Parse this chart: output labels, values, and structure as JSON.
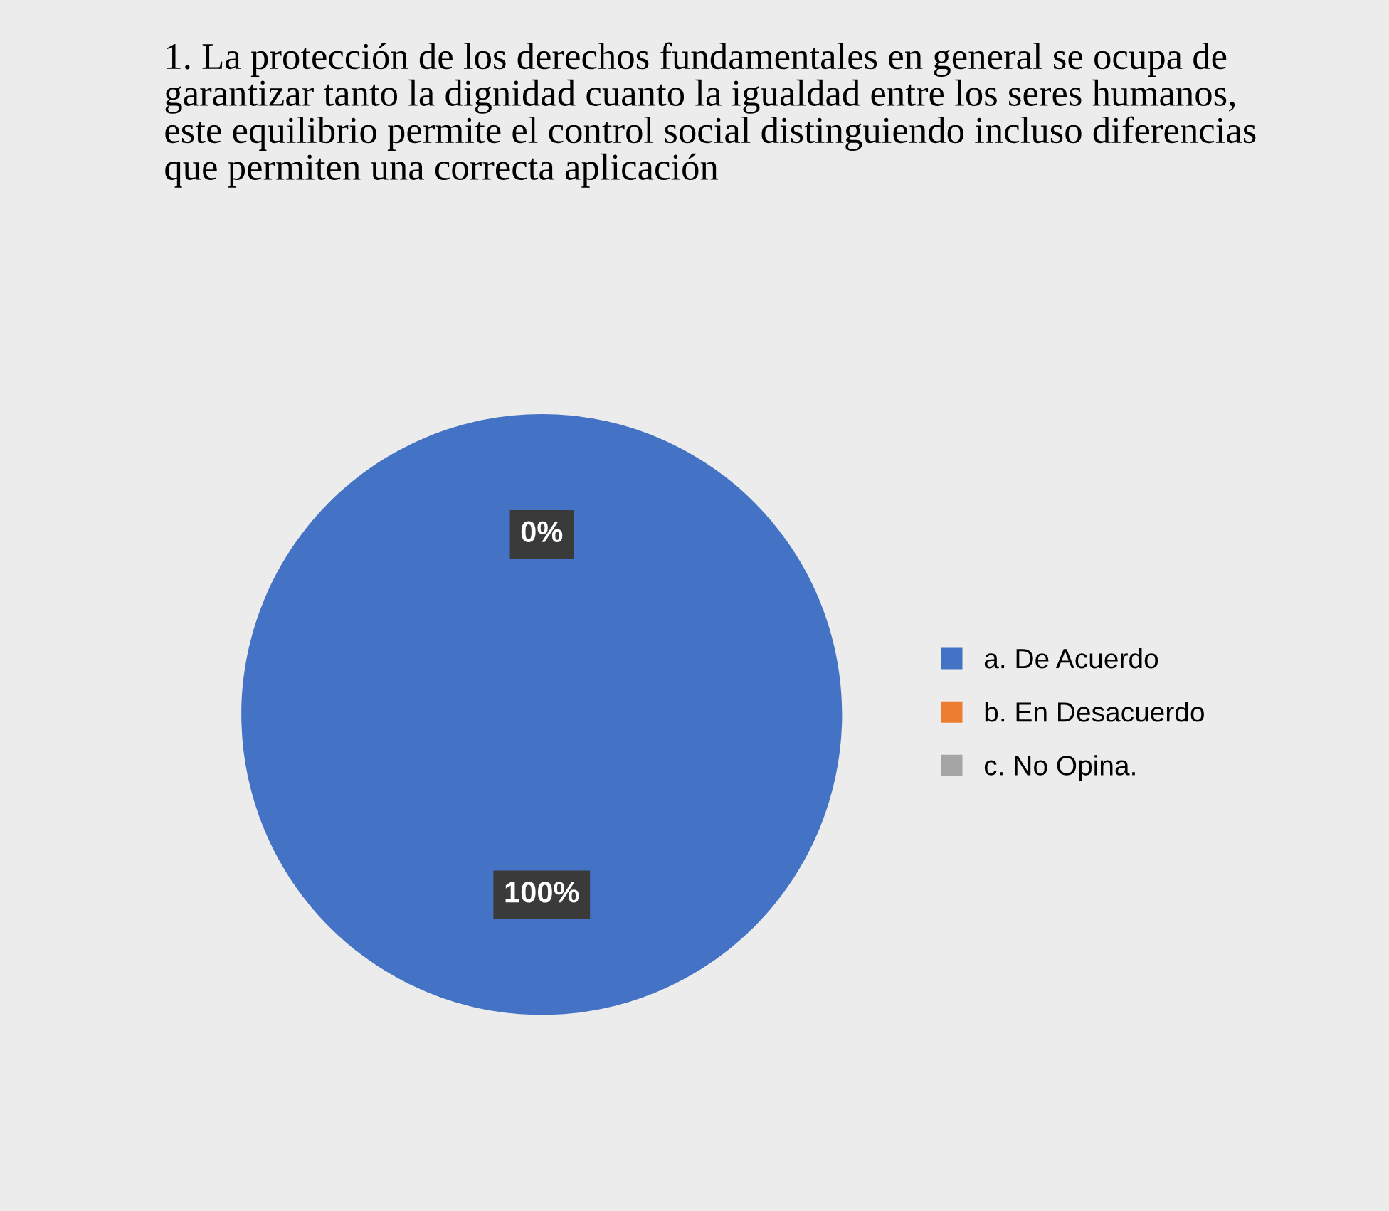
{
  "chart_data": {
    "type": "pie",
    "title": "1. La protección de los derechos fundamentales en general se ocupa de garantizar tanto la dignidad cuanto la igualdad entre los seres humanos, este equilibrio permite el control social distinguiendo incluso diferencias que permiten una correcta aplicación",
    "categories": [
      "a. De Acuerdo",
      "b. En Desacuerdo",
      "c. No Opina."
    ],
    "values": [
      100,
      0,
      0
    ],
    "colors": [
      "#4472c4",
      "#ed7d31",
      "#a5a5a5"
    ],
    "value_labels": [
      "100%",
      "0%",
      null
    ],
    "legend": "right"
  }
}
